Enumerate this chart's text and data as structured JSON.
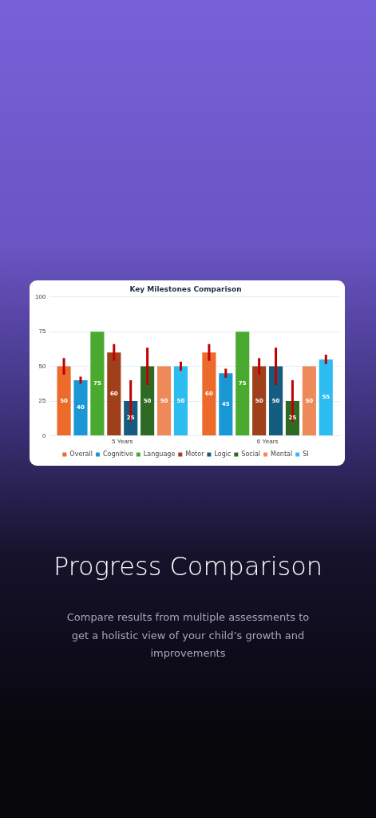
{
  "chart_data": {
    "type": "bar",
    "title": "Key Milestones Comparison",
    "categories": [
      "5 Years",
      "6 Years"
    ],
    "series": [
      {
        "name": "Overall",
        "color": "#ec6a2a",
        "values": [
          50,
          60
        ],
        "errors": [
          6,
          6
        ]
      },
      {
        "name": "Cognitive",
        "color": "#1a98d5",
        "values": [
          40,
          45
        ],
        "errors": [
          2.5,
          3.3
        ]
      },
      {
        "name": "Language",
        "color": "#4aaa30",
        "values": [
          75,
          75
        ],
        "errors": [
          null,
          null
        ]
      },
      {
        "name": "Motor",
        "color": "#a0401a",
        "values": [
          60,
          50
        ],
        "errors": [
          6,
          6
        ]
      },
      {
        "name": "Logic",
        "color": "#155d80",
        "values": [
          25,
          50
        ],
        "errors": [
          15,
          13.5
        ]
      },
      {
        "name": "Social",
        "color": "#2f6a25",
        "values": [
          50,
          25
        ],
        "errors": [
          13.5,
          15
        ]
      },
      {
        "name": "Mental",
        "color": "#ee8a5a",
        "values": [
          50,
          50
        ],
        "errors": [
          null,
          null
        ]
      },
      {
        "name": "SI",
        "color": "#2ebdf0",
        "values": [
          50,
          55
        ],
        "errors": [
          3.3,
          3.4
        ]
      }
    ],
    "ylim": [
      0,
      100
    ],
    "yticks": [
      0,
      25,
      50,
      75,
      100
    ],
    "grid": "y",
    "legend": "bottom",
    "data_labels": true,
    "annotations": [
      "Progress Comparison",
      "Compare results from multiple assessments to get a holistic view of your child’s growth and improvements"
    ]
  }
}
